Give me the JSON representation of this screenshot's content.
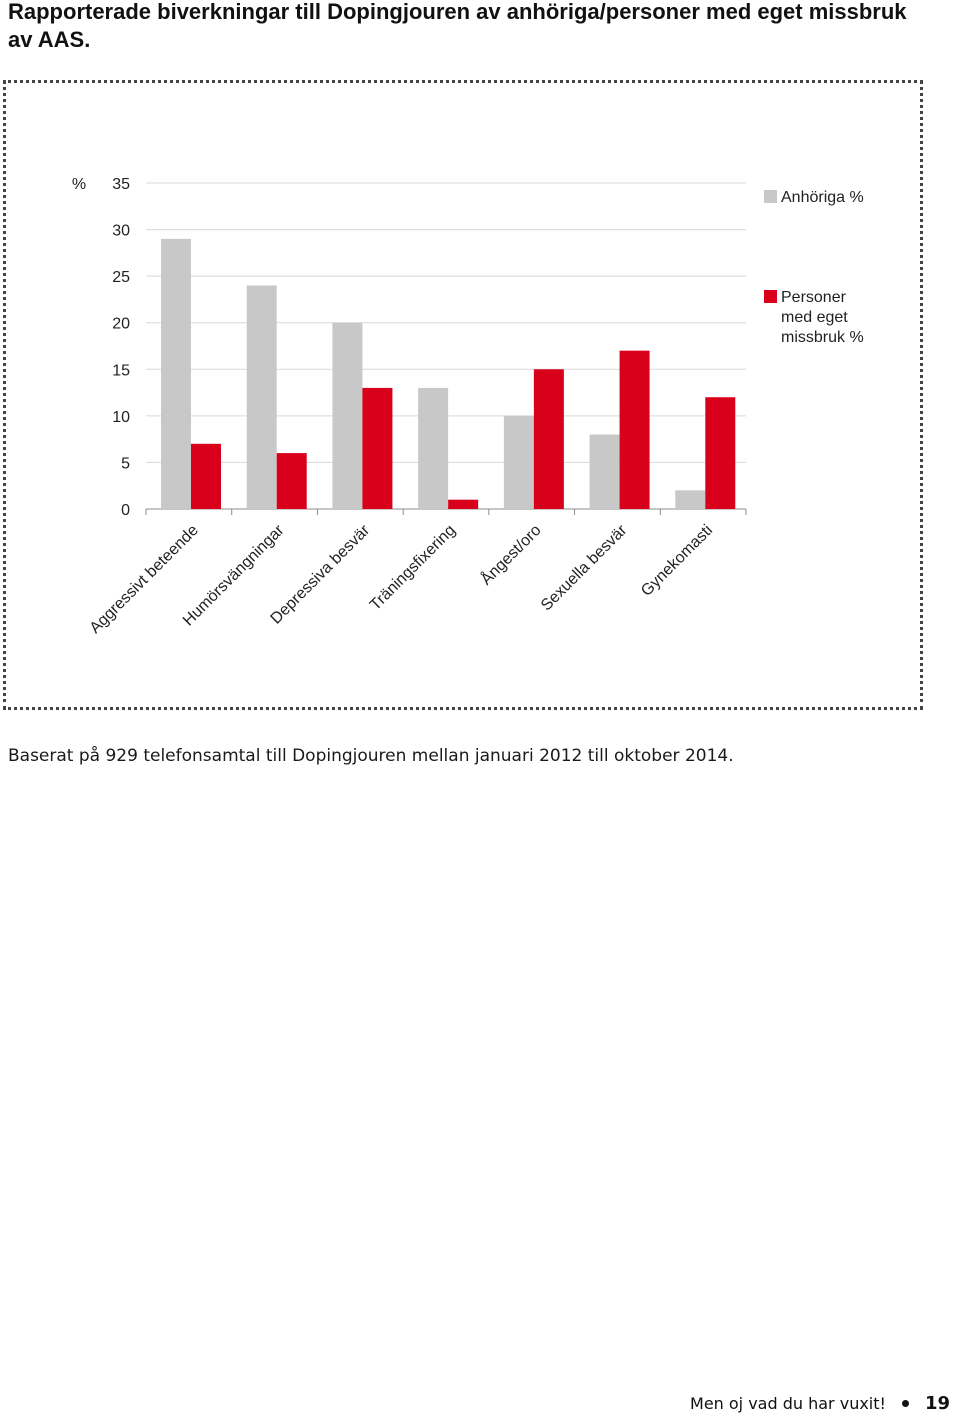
{
  "page": {
    "title": "Rapporterade biverkningar till Dopingjouren av anhöriga/personer med eget missbruk av AAS.",
    "caption": "Baserat på 929 telefonsamtal till Dopingjouren mellan januari 2012 till oktober 2014.",
    "footer_text": "Men oj vad du har vuxit!",
    "page_number": "19"
  },
  "chart_data": {
    "type": "bar",
    "title": "",
    "ylabel": "%",
    "xlabel": "",
    "ylim": [
      0,
      35
    ],
    "yticks": [
      "0",
      "5",
      "10",
      "15",
      "20",
      "25",
      "30",
      "35"
    ],
    "categories": [
      "Aggressivt beteende",
      "Humörsvängningar",
      "Depressiva besvär",
      "Träningsfixering",
      "Ångest/oro",
      "Sexuella besvär",
      "Gynekomasti"
    ],
    "series": [
      {
        "name": "Anhöriga %",
        "color": "#c8c8c8",
        "values": [
          29,
          24,
          20,
          13,
          10,
          8,
          2
        ]
      },
      {
        "name": "Personer med eget missbruk %",
        "color": "#d9001b",
        "values": [
          7,
          6,
          13,
          1,
          15,
          17,
          12
        ]
      }
    ],
    "grid": true,
    "legend": "right"
  }
}
